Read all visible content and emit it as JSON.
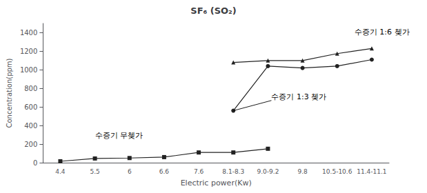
{
  "chart_data": {
    "type": "line",
    "title": "SF₆ (SO₂)",
    "x_label": "Electric power(Kw)",
    "y_label": "Concentration(ppm)",
    "categories": [
      "4.4",
      "5.5",
      "6",
      "6.6",
      "7.6",
      "8.1-8.3",
      "9.0-9.2",
      "9.8",
      "10.5-10.6",
      "11.4-11.1"
    ],
    "series": [
      {
        "values": [
          15,
          45,
          50,
          60,
          110,
          110,
          150,
          null,
          null,
          null
        ],
        "marker": "square",
        "color": "#222222"
      },
      {
        "values": [
          null,
          null,
          null,
          null,
          null,
          560,
          1040,
          1020,
          1040,
          1110
        ],
        "marker": "circle",
        "color": "#222222"
      },
      {
        "values": [
          null,
          null,
          null,
          null,
          null,
          1080,
          1100,
          1100,
          1175,
          1230
        ],
        "marker": "triangle",
        "color": "#222222"
      }
    ],
    "annotations": [
      {
        "text": "수증기 무쳊가",
        "x": 1.0,
        "y": 255
      },
      {
        "text": "수증기 1:3 쳊가",
        "x": 6.1,
        "y": 670,
        "arrow_x": 5,
        "arrow_y": 560
      },
      {
        "text": "수증기 1:6 쳊가",
        "x": 8.5,
        "y": 1370
      }
    ],
    "ylim": [
      0,
      1500
    ],
    "yticks": [
      0,
      200,
      400,
      600,
      800,
      1000,
      1200,
      1400
    ],
    "grid": false
  }
}
